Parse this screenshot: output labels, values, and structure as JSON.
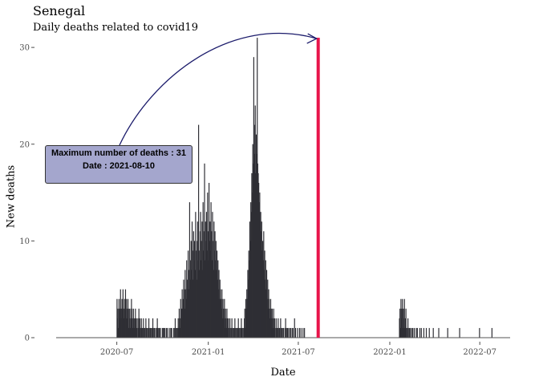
{
  "chart_data": {
    "type": "bar",
    "title": "Senegal",
    "subtitle": "Daily deaths related to covid19",
    "xlabel": "Date",
    "ylabel": "New deaths",
    "x_axis": {
      "start": "2020-03-01",
      "end": "2022-08-31",
      "ticks": [
        "2020-07",
        "2021-01",
        "2021-07",
        "2022-01",
        "2022-07"
      ]
    },
    "y_axis": {
      "range": [
        0,
        32
      ],
      "ticks": [
        0,
        10,
        20,
        30
      ]
    },
    "bar_color": "#2f2f35",
    "highlight_color": "#e8144a",
    "highlight": {
      "date": "2021-08-10",
      "value": 31
    },
    "annotation": {
      "line1": "Maximum number of deaths : 31",
      "line2": "Date : 2021-08-10",
      "fill": "#a4a6cd",
      "arrow_color": "#1b1b6b"
    },
    "series_segments": [
      {
        "start": "2020-07-01",
        "values": [
          4,
          2,
          3,
          1,
          4,
          2,
          3,
          5,
          4,
          2,
          3,
          4,
          5,
          3,
          2,
          4,
          3,
          5,
          2,
          4,
          3,
          2,
          4,
          1,
          3,
          2,
          3,
          1,
          2,
          4,
          3,
          2,
          1,
          3,
          2,
          1,
          2,
          3,
          1,
          2,
          1,
          0,
          2,
          1,
          3,
          1,
          2,
          0,
          1,
          2,
          1,
          0,
          1,
          2,
          0,
          1,
          1,
          0,
          2,
          1,
          0,
          1,
          0,
          1,
          2,
          1,
          0,
          1,
          1,
          0,
          1,
          0,
          2,
          1,
          0,
          1,
          1,
          0,
          0,
          1,
          1,
          2,
          1,
          0,
          1,
          0,
          1,
          1,
          0,
          0,
          0,
          1,
          0,
          1,
          1,
          0,
          1,
          0,
          0,
          1,
          0,
          1,
          0,
          0,
          0,
          1,
          0,
          0,
          1,
          0,
          1,
          0,
          0,
          0,
          1,
          1,
          0,
          2,
          1,
          0,
          1,
          1,
          0,
          2,
          1,
          3,
          2,
          1,
          4,
          3,
          2,
          5,
          3,
          4,
          6,
          5,
          3,
          7,
          5,
          4,
          8,
          6,
          5,
          9,
          7,
          5,
          14,
          6,
          8,
          10,
          7,
          12,
          9,
          6,
          11,
          8,
          10,
          7,
          13,
          9,
          6,
          10,
          12,
          8,
          22,
          9,
          7,
          11,
          13,
          8,
          10,
          12,
          7,
          14,
          9,
          11,
          18,
          8,
          12,
          10,
          13,
          9,
          15,
          11,
          8,
          16,
          10,
          12,
          9,
          14,
          11,
          8,
          13,
          10,
          7,
          12,
          9,
          11,
          8,
          10,
          7,
          9,
          6,
          8,
          5,
          7,
          4,
          6,
          5,
          4,
          3,
          5,
          2,
          4,
          3,
          2,
          4,
          1,
          3,
          2,
          1,
          3,
          2,
          1,
          2,
          0,
          1,
          2,
          1,
          0,
          1,
          2,
          0,
          1,
          1,
          0,
          1,
          2,
          0,
          1,
          0,
          1,
          1,
          0,
          2,
          1,
          0,
          1,
          0,
          1,
          2,
          1,
          0,
          1,
          0,
          1,
          2,
          3,
          1,
          4,
          3,
          5,
          4,
          7,
          6,
          9,
          8,
          12,
          10,
          14,
          13,
          17,
          15,
          20,
          18,
          29,
          22,
          19,
          24,
          17,
          21,
          19,
          31,
          18,
          17,
          16,
          14,
          15,
          12,
          13,
          11,
          12,
          9,
          10,
          8,
          11,
          7,
          9,
          6,
          8,
          5,
          7,
          4,
          6,
          3,
          5,
          4,
          3,
          2,
          4,
          3,
          2,
          3,
          1,
          2,
          3,
          1,
          2,
          1,
          0,
          2,
          1,
          0,
          1,
          2,
          0,
          1,
          1,
          0,
          2,
          1,
          0,
          1,
          0,
          1,
          1,
          0,
          0,
          1,
          2,
          0,
          1,
          0,
          1,
          1,
          0,
          0,
          1,
          0,
          1,
          0,
          0,
          1,
          0,
          1,
          0,
          0,
          2,
          0,
          1,
          0,
          0,
          0,
          1,
          0,
          0,
          0,
          1,
          0,
          0,
          1,
          0,
          0,
          0,
          1,
          0,
          0,
          1
        ]
      },
      {
        "start": "2022-01-20",
        "values": [
          2,
          3,
          1,
          4,
          2,
          3,
          4,
          1,
          3,
          2,
          4,
          1,
          2,
          3,
          1,
          0,
          1,
          2,
          0,
          1,
          0,
          1,
          1,
          0,
          0,
          1,
          0,
          1,
          0,
          0,
          1,
          0,
          0,
          0,
          1,
          0,
          1,
          0,
          0,
          0,
          0,
          1,
          0,
          0,
          1,
          0,
          0,
          0,
          0,
          1,
          0,
          0,
          0,
          0,
          1,
          0,
          0,
          0,
          0,
          0,
          1,
          0,
          0,
          0,
          0,
          0,
          0,
          0,
          1,
          0,
          0,
          0,
          0,
          0,
          0,
          0,
          0,
          0,
          0,
          1,
          0,
          0,
          0,
          0,
          0,
          0,
          0,
          0,
          0,
          0,
          0,
          0,
          0,
          0,
          0,
          0,
          0,
          1,
          0,
          0,
          0,
          0,
          0,
          0,
          0,
          0,
          0,
          0,
          0,
          0,
          0,
          0,
          0,
          0,
          0,
          0,
          0,
          0,
          0,
          0,
          0,
          1,
          0,
          0,
          0,
          0,
          0,
          0,
          0,
          0,
          0,
          0,
          0,
          0,
          0,
          0,
          0,
          0,
          0,
          0,
          0,
          0,
          0,
          0,
          0,
          0,
          0,
          0,
          0,
          0,
          0,
          0,
          0,
          0,
          0,
          0,
          0,
          0,
          0,
          0,
          0,
          1,
          0,
          0,
          0,
          0,
          0,
          0,
          0,
          0,
          0,
          0,
          0,
          0,
          0,
          0,
          0,
          0,
          0,
          0,
          0,
          0,
          0,
          0,
          0,
          0,
          1
        ]
      }
    ]
  }
}
